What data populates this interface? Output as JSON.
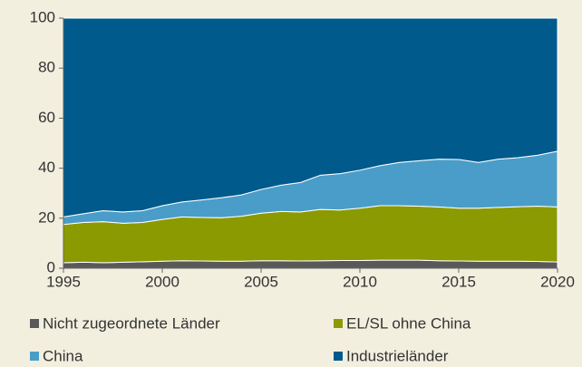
{
  "chart_data": {
    "type": "stacked_area",
    "x": [
      1995,
      1996,
      1997,
      1998,
      1999,
      2000,
      2001,
      2002,
      2003,
      2004,
      2005,
      2006,
      2007,
      2008,
      2009,
      2010,
      2011,
      2012,
      2013,
      2014,
      2015,
      2016,
      2017,
      2018,
      2019,
      2020
    ],
    "xlim": [
      1995,
      2020
    ],
    "xticks": [
      1995,
      2000,
      2005,
      2010,
      2015,
      2020
    ],
    "ylim": [
      0,
      100
    ],
    "yticks": [
      0,
      20,
      40,
      60,
      80,
      100
    ],
    "series": [
      {
        "name": "Nicht zugeordnete Länder",
        "color": "#595959",
        "values": [
          2.2,
          2.4,
          2.2,
          2.4,
          2.6,
          2.8,
          3.0,
          2.9,
          2.8,
          2.8,
          3.0,
          3.0,
          2.9,
          3.0,
          3.1,
          3.1,
          3.2,
          3.2,
          3.2,
          3.0,
          2.9,
          2.8,
          2.8,
          2.8,
          2.7,
          2.5
        ]
      },
      {
        "name": "EL/SL ohne China",
        "color": "#8a9a00",
        "values": [
          15.3,
          15.9,
          16.4,
          15.6,
          15.7,
          16.7,
          17.5,
          17.4,
          17.4,
          18.0,
          19.0,
          19.7,
          19.6,
          20.5,
          20.2,
          20.9,
          21.8,
          21.8,
          21.6,
          21.5,
          21.1,
          21.2,
          21.5,
          21.8,
          22.1,
          22.0
        ]
      },
      {
        "name": "China",
        "color": "#4a9dc8",
        "values": [
          3.0,
          3.5,
          4.4,
          4.5,
          4.7,
          5.5,
          6.0,
          7.0,
          8.0,
          8.5,
          9.5,
          10.5,
          11.8,
          13.7,
          14.5,
          15.2,
          16.0,
          17.3,
          18.2,
          19.1,
          19.5,
          18.3,
          19.3,
          19.6,
          20.4,
          22.3
        ]
      },
      {
        "name": "Industrieländer",
        "color": "#005a8b",
        "values": [
          79.5,
          78.2,
          77.0,
          77.5,
          77.0,
          75.0,
          73.5,
          72.7,
          71.8,
          70.7,
          68.5,
          66.8,
          65.7,
          62.8,
          62.2,
          60.8,
          59.0,
          57.7,
          57.0,
          56.4,
          56.5,
          57.7,
          56.4,
          55.8,
          54.8,
          53.2
        ]
      }
    ]
  }
}
